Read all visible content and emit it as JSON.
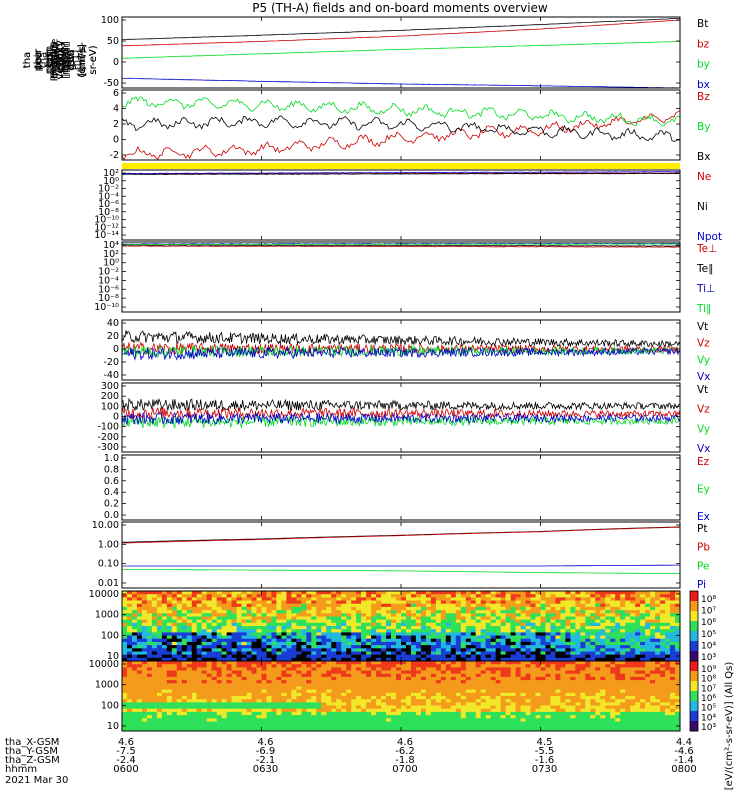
{
  "title": "P5 (TH-A) fields and on-board moments overview",
  "colors": {
    "black": "#000000",
    "red": "#cc0000",
    "blue": "#0000cc",
    "green": "#00dd22",
    "yellow": "#ffee00"
  },
  "panels": [
    {
      "id": "fgs",
      "ylabel": [
        "tha",
        "fgs",
        "gsm",
        "[nT]"
      ],
      "ticks": [
        "100",
        "50",
        "0",
        "-50"
      ],
      "legend": [
        {
          "label": "Bt",
          "color": "black"
        },
        {
          "label": "bz",
          "color": "red"
        },
        {
          "label": "by",
          "color": "green"
        },
        {
          "label": "bx",
          "color": "blue"
        }
      ]
    },
    {
      "id": "fgs_dlp",
      "ylabel": [
        "tha",
        "fgs",
        "gsm",
        "-t89",
        "[nT]"
      ],
      "ticks": [
        "6",
        "4",
        "2",
        "0",
        "-2"
      ],
      "legend": [
        {
          "label": "Bz",
          "color": "red"
        },
        {
          "label": "By",
          "color": "green"
        },
        {
          "label": "Bx",
          "color": "black"
        }
      ]
    },
    {
      "id": "density",
      "ylabel": [
        "Density",
        "[cm-3]"
      ],
      "ticks": [
        "10²",
        "10⁰",
        "10⁻²",
        "10⁻⁴",
        "10⁻⁶",
        "10⁻⁸",
        "10⁻¹⁰",
        "10⁻¹²",
        "10⁻¹⁴"
      ],
      "legend": [
        {
          "label": "Ne",
          "color": "red"
        },
        {
          "label": "Ni",
          "color": "black"
        },
        {
          "label": "Npot",
          "color": "blue"
        }
      ]
    },
    {
      "id": "temperature",
      "ylabel": [
        "magt3",
        "[eV]"
      ],
      "ticks": [
        "10⁴",
        "10²",
        "10⁰",
        "10⁻²",
        "10⁻⁴",
        "10⁻⁶",
        "10⁻⁸",
        "10⁻¹⁰"
      ],
      "legend": [
        {
          "label": "Te⊥",
          "color": "red"
        },
        {
          "label": "Te∥",
          "color": "black"
        },
        {
          "label": "Ti⊥",
          "color": "blue"
        },
        {
          "label": "Ti∥",
          "color": "green"
        }
      ]
    },
    {
      "id": "peim_velocity",
      "ylabel": [
        "tha",
        "peim",
        "velocity",
        "gsm",
        "[km/s]"
      ],
      "ticks": [
        "40",
        "20",
        "0",
        "-20",
        "-40"
      ],
      "legend": [
        {
          "label": "Vt",
          "color": "black"
        },
        {
          "label": "Vz",
          "color": "red"
        },
        {
          "label": "Vy",
          "color": "green"
        },
        {
          "label": "Vx",
          "color": "blue"
        }
      ]
    },
    {
      "id": "peem_velocity",
      "ylabel": [
        "tha",
        "peem",
        "velocity",
        "gsm",
        "[km/s]"
      ],
      "ticks": [
        "300",
        "200",
        "100",
        "0",
        "-100",
        "-200",
        "-300"
      ],
      "legend": [
        {
          "label": "Vt",
          "color": "black"
        },
        {
          "label": "Vz",
          "color": "red"
        },
        {
          "label": "Vy",
          "color": "green"
        },
        {
          "label": "Vx",
          "color": "blue"
        }
      ]
    },
    {
      "id": "efield",
      "ylabel": [
        "E=-VxB",
        "[mV/m]"
      ],
      "ticks": [
        "1.0",
        "0.8",
        "0.6",
        "0.4",
        "0.2",
        "0.0"
      ],
      "legend": [
        {
          "label": "Ez",
          "color": "red"
        },
        {
          "label": "Ey",
          "color": "green"
        },
        {
          "label": "Ex",
          "color": "blue"
        }
      ]
    },
    {
      "id": "pressure",
      "ylabel": [
        "Pressure",
        "[nPa]"
      ],
      "ticks": [
        "10.00",
        "1.00",
        "0.10",
        "0.01"
      ],
      "legend": [
        {
          "label": "Pt",
          "color": "black"
        },
        {
          "label": "Pb",
          "color": "red"
        },
        {
          "label": "Pe",
          "color": "green"
        },
        {
          "label": "Pi",
          "color": "blue"
        }
      ]
    },
    {
      "id": "peir_spec",
      "ylabel": [
        "tha",
        "peir",
        "en",
        "eflux",
        "eV",
        "(cm²-s-",
        "sr-eV)"
      ],
      "ticks": [
        "10000",
        "1000",
        "100",
        "10"
      ],
      "colorbar_ticks": [
        "10⁸",
        "10⁷",
        "10⁶",
        "10⁵",
        "10⁴",
        "10³"
      ]
    },
    {
      "id": "peer_spec",
      "ylabel": [
        "tha",
        "peer",
        "en",
        "eflux",
        "eV",
        "(cm²-s-",
        "sr-eV)"
      ],
      "ticks": [
        "10000",
        "1000",
        "100",
        "10"
      ],
      "colorbar_ticks": [
        "10⁹",
        "10⁸",
        "10⁷",
        "10⁶",
        "10⁵",
        "10⁴",
        "10³"
      ]
    }
  ],
  "colorbar_label": "[eV/(cm²-s-sr-eV)] (All Qs)",
  "footer": {
    "row_labels": [
      "tha_X-GSM",
      "tha_Y-GSM",
      "tha_Z-GSM",
      "hhmm",
      "2021 Mar 30"
    ],
    "columns": [
      {
        "x": "4.6",
        "y": "-7.5",
        "z": "-2.4",
        "hhmm": "0600"
      },
      {
        "x": "4.6",
        "y": "-6.9",
        "z": "-2.1",
        "hhmm": "0630"
      },
      {
        "x": "4.6",
        "y": "-6.2",
        "z": "-1.8",
        "hhmm": "0700"
      },
      {
        "x": "4.5",
        "y": "-5.5",
        "z": "-1.6",
        "hhmm": "0730"
      },
      {
        "x": "4.4",
        "y": "-4.6",
        "z": "-1.4",
        "hhmm": "0800"
      }
    ]
  },
  "chart_data": [
    {
      "type": "line",
      "panel": "fgs",
      "x": [
        "0600",
        "0630",
        "0700",
        "0730",
        "0800"
      ],
      "ylim": [
        -55,
        105
      ],
      "series": [
        {
          "name": "Bt",
          "values": [
            54,
            64,
            75,
            88,
            102
          ]
        },
        {
          "name": "bz",
          "values": [
            40,
            50,
            62,
            78,
            98
          ]
        },
        {
          "name": "by",
          "values": [
            12,
            22,
            32,
            41,
            50
          ]
        },
        {
          "name": "bx",
          "values": [
            -33,
            -40,
            -46,
            -50,
            -55
          ]
        }
      ]
    },
    {
      "type": "line",
      "panel": "fgs_dlp",
      "x": [
        "0600",
        "0630",
        "0700",
        "0730",
        "0800"
      ],
      "ylim": [
        -2.5,
        6
      ],
      "series": [
        {
          "name": "Bz",
          "values": [
            -1.8,
            -1.2,
            0.2,
            1.2,
            2.8
          ]
        },
        {
          "name": "By",
          "values": [
            4.6,
            4.2,
            3.6,
            2.9,
            2.2
          ]
        },
        {
          "name": "Bx",
          "values": [
            1.8,
            2.2,
            1.8,
            1.0,
            0.3
          ]
        }
      ]
    },
    {
      "type": "line",
      "panel": "density",
      "x": [
        "0600",
        "0800"
      ],
      "ylim": [
        -14,
        2
      ],
      "scale": "log",
      "series": [
        {
          "name": "Ne",
          "values": [
            1.1,
            1.3
          ]
        },
        {
          "name": "Ni",
          "values": [
            1.0,
            1.2
          ]
        },
        {
          "name": "Npot",
          "values": [
            1.2,
            1.6
          ]
        }
      ]
    },
    {
      "type": "line",
      "panel": "temperature",
      "x": [
        "0600",
        "0800"
      ],
      "ylim": [
        -10,
        4
      ],
      "scale": "log",
      "series": [
        {
          "name": "Te⊥",
          "values": [
            3.2,
            3.0
          ]
        },
        {
          "name": "Te∥",
          "values": [
            3.4,
            3.2
          ]
        },
        {
          "name": "Ti⊥",
          "values": [
            3.6,
            3.7
          ]
        },
        {
          "name": "Ti∥",
          "values": [
            3.5,
            3.6
          ]
        }
      ]
    },
    {
      "type": "line",
      "panel": "peim_velocity",
      "x": [
        "0600",
        "0800"
      ],
      "ylim": [
        -40,
        40
      ],
      "series": [
        {
          "name": "Vt",
          "values": [
            18,
            8
          ]
        },
        {
          "name": "Vz",
          "values": [
            2,
            1
          ]
        },
        {
          "name": "Vy",
          "values": [
            -2,
            -1
          ]
        },
        {
          "name": "Vx",
          "values": [
            -5,
            -2
          ]
        }
      ]
    },
    {
      "type": "line",
      "panel": "peem_velocity",
      "x": [
        "0600",
        "0800"
      ],
      "ylim": [
        -300,
        300
      ],
      "series": [
        {
          "name": "Vt",
          "values": [
            110,
            100
          ]
        },
        {
          "name": "Vz",
          "values": [
            40,
            30
          ]
        },
        {
          "name": "Vy",
          "values": [
            -40,
            -30
          ]
        },
        {
          "name": "Vx",
          "values": [
            -10,
            -5
          ]
        }
      ]
    },
    {
      "type": "line",
      "panel": "efield",
      "ylim": [
        0,
        1
      ],
      "series": []
    },
    {
      "type": "line",
      "panel": "pressure",
      "x": [
        "0600",
        "0630",
        "0700",
        "0730",
        "0800"
      ],
      "ylim": [
        0.01,
        10
      ],
      "scale": "log",
      "series": [
        {
          "name": "Pt",
          "values": [
            1.2,
            1.7,
            2.5,
            3.7,
            6.0
          ]
        },
        {
          "name": "Pb",
          "values": [
            1.1,
            1.6,
            2.4,
            3.6,
            5.8
          ]
        },
        {
          "name": "Pe",
          "values": [
            0.07,
            0.065,
            0.06,
            0.05,
            0.045
          ]
        },
        {
          "name": "Pi",
          "values": [
            0.1,
            0.1,
            0.1,
            0.1,
            0.11
          ]
        }
      ]
    },
    {
      "type": "heatmap",
      "panel": "peir_spec",
      "ylim": [
        5,
        25000
      ],
      "scale": "log"
    },
    {
      "type": "heatmap",
      "panel": "peer_spec",
      "ylim": [
        5,
        25000
      ],
      "scale": "log"
    }
  ]
}
